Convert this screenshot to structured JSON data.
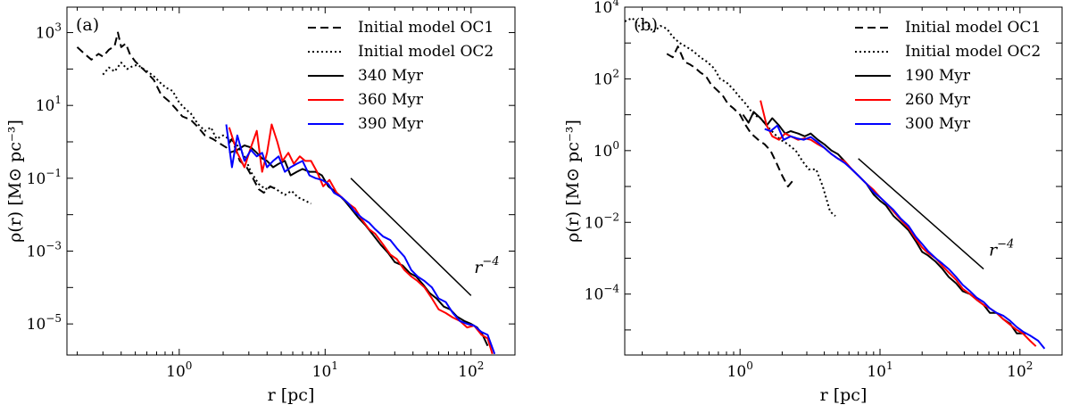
{
  "chart_data": [
    {
      "type": "line",
      "panel_label": "(a)",
      "xlabel": "r [pc]",
      "ylabel": "ρ(r) [M⊙ pc⁻³]",
      "xscale": "log",
      "yscale": "log",
      "xlim": [
        0.17,
        200
      ],
      "ylim": [
        1.4e-06,
        5000
      ],
      "x_ticks": [
        {
          "value": 1,
          "exp": "0"
        },
        {
          "value": 10,
          "exp": "1"
        },
        {
          "value": 100,
          "exp": "2"
        }
      ],
      "y_ticks": [
        {
          "value": 1e-05,
          "exp": "−5"
        },
        {
          "value": 0.001,
          "exp": "−3"
        },
        {
          "value": 0.1,
          "exp": "−1"
        },
        {
          "value": 10,
          "exp": "1"
        },
        {
          "value": 1000,
          "exp": "3"
        }
      ],
      "tick_base": "10",
      "legend_position": "top-right",
      "series": [
        {
          "name": "Initial model OC1",
          "color": "#000000",
          "dash": "dashed",
          "x": [
            0.2,
            0.22,
            0.25,
            0.28,
            0.3,
            0.33,
            0.36,
            0.38,
            0.4,
            0.43,
            0.46,
            0.5,
            0.55,
            0.6,
            0.67,
            0.75,
            0.85,
            0.95,
            1.05,
            1.2,
            1.35,
            1.5,
            1.7,
            1.9,
            2.1,
            2.3,
            2.6,
            2.9,
            3.2,
            3.5,
            3.8,
            4.2,
            4.6
          ],
          "y": [
            400,
            280,
            180,
            260,
            220,
            340,
            420,
            1000,
            400,
            500,
            250,
            160,
            110,
            80,
            50,
            20,
            13,
            8,
            5,
            4,
            2.5,
            1.5,
            1.2,
            0.9,
            0.7,
            1.2,
            0.3,
            0.2,
            0.1,
            0.05,
            0.04,
            0.06,
            0.05
          ]
        },
        {
          "name": "Initial model OC2",
          "color": "#000000",
          "dash": "dotted",
          "x": [
            0.3,
            0.33,
            0.36,
            0.4,
            0.44,
            0.48,
            0.52,
            0.57,
            0.62,
            0.68,
            0.75,
            0.82,
            0.9,
            1.0,
            1.1,
            1.2,
            1.35,
            1.5,
            1.65,
            1.8,
            2.0,
            2.2,
            2.5,
            2.8,
            3.1,
            3.5,
            3.9,
            4.3,
            4.8,
            5.3,
            5.9,
            6.5,
            7.2,
            8.0
          ],
          "y": [
            70,
            110,
            85,
            150,
            100,
            120,
            130,
            100,
            80,
            60,
            40,
            30,
            25,
            12,
            8,
            6,
            3,
            2,
            2.5,
            1.2,
            1.5,
            1.2,
            0.8,
            0.4,
            0.15,
            0.07,
            0.05,
            0.06,
            0.045,
            0.035,
            0.045,
            0.03,
            0.025,
            0.02
          ]
        },
        {
          "name": "340 Myr",
          "color": "#000000",
          "dash": "solid",
          "x": [
            2.2,
            2.5,
            2.8,
            3.1,
            3.4,
            3.7,
            4.0,
            4.4,
            4.8,
            5.3,
            5.8,
            6.4,
            7.0,
            7.8,
            8.6,
            9.5,
            10.5,
            12,
            13.5,
            15,
            17,
            19,
            21,
            24,
            27,
            30,
            34,
            38,
            42,
            47,
            52,
            58,
            65,
            72,
            80,
            90,
            100,
            110,
            120,
            130
          ],
          "y": [
            0.5,
            0.6,
            0.8,
            0.7,
            0.5,
            0.35,
            0.3,
            0.2,
            0.25,
            0.3,
            0.12,
            0.15,
            0.18,
            0.15,
            0.15,
            0.12,
            0.06,
            0.04,
            0.025,
            0.015,
            0.008,
            0.005,
            0.003,
            0.0015,
            0.0009,
            0.0005,
            0.0004,
            0.00025,
            0.0002,
            0.00012,
            7e-05,
            5e-05,
            3e-05,
            2.5e-05,
            1.6e-05,
            1.2e-05,
            1e-05,
            8e-06,
            5e-06,
            2.5e-06
          ]
        },
        {
          "name": "360 Myr",
          "color": "#ff0000",
          "dash": "solid",
          "x": [
            2.2,
            2.5,
            2.8,
            3.1,
            3.4,
            3.7,
            4.0,
            4.3,
            4.7,
            5.1,
            5.6,
            6.1,
            6.7,
            7.3,
            8.0,
            8.8,
            9.7,
            10.7,
            12,
            13,
            14.5,
            16,
            18,
            20,
            22,
            25,
            28,
            31,
            35,
            39,
            43,
            48,
            54,
            60,
            67,
            75,
            84,
            94,
            105,
            118,
            130,
            140
          ],
          "y": [
            2.5,
            0.5,
            0.2,
            0.7,
            2,
            0.15,
            0.5,
            3,
            1,
            0.3,
            0.5,
            0.25,
            0.4,
            0.3,
            0.3,
            0.15,
            0.06,
            0.09,
            0.04,
            0.03,
            0.02,
            0.015,
            0.007,
            0.004,
            0.003,
            0.0015,
            0.0008,
            0.0006,
            0.0003,
            0.0002,
            0.00015,
            0.0001,
            5e-05,
            2.5e-05,
            2e-05,
            1.5e-05,
            1.2e-05,
            8e-06,
            9e-06,
            5e-06,
            4e-06,
            1.5e-06
          ]
        },
        {
          "name": "390 Myr",
          "color": "#0000ff",
          "dash": "solid",
          "x": [
            2.1,
            2.3,
            2.5,
            2.8,
            3.1,
            3.4,
            3.7,
            4.0,
            4.4,
            4.8,
            5.3,
            5.8,
            6.4,
            7.0,
            7.8,
            8.6,
            9.5,
            10.5,
            11.5,
            13,
            14.5,
            16,
            18,
            20,
            22,
            25,
            28,
            31,
            35,
            39,
            43,
            48,
            54,
            60,
            67,
            75,
            84,
            94,
            105,
            118,
            130,
            145
          ],
          "y": [
            3,
            0.2,
            1.5,
            0.3,
            0.6,
            0.4,
            0.5,
            0.2,
            0.3,
            0.4,
            0.15,
            0.2,
            0.25,
            0.3,
            0.12,
            0.1,
            0.09,
            0.07,
            0.04,
            0.03,
            0.02,
            0.012,
            0.008,
            0.006,
            0.004,
            0.0025,
            0.002,
            0.0012,
            0.0007,
            0.0003,
            0.0002,
            0.00015,
            0.0001,
            5e-05,
            4e-05,
            2e-05,
            1.2e-05,
            1e-05,
            9e-06,
            6e-06,
            5e-06,
            1.5e-06
          ]
        }
      ],
      "reference_line": {
        "label": "r",
        "label_sup": "−4",
        "x": [
          15,
          100
        ],
        "y": [
          0.1,
          6e-05
        ],
        "label_at": [
          105,
          0.00025
        ]
      }
    },
    {
      "type": "line",
      "panel_label": "(b)",
      "xlabel": "r [pc]",
      "ylabel": "ρ(r) [M⊙ pc⁻³]",
      "xscale": "log",
      "yscale": "log",
      "xlim": [
        0.15,
        200
      ],
      "ylim": [
        2e-06,
        10000
      ],
      "x_ticks": [
        {
          "value": 1,
          "exp": "0"
        },
        {
          "value": 10,
          "exp": "1"
        },
        {
          "value": 100,
          "exp": "2"
        }
      ],
      "y_ticks": [
        {
          "value": 0.0001,
          "exp": "−4"
        },
        {
          "value": 0.01,
          "exp": "−2"
        },
        {
          "value": 1,
          "exp": "0"
        },
        {
          "value": 100,
          "exp": "2"
        },
        {
          "value": 10000,
          "exp": "4"
        }
      ],
      "tick_base": "10",
      "legend_position": "top-right",
      "series": [
        {
          "name": "Initial model OC1",
          "color": "#000000",
          "dash": "dashed",
          "x": [
            0.3,
            0.33,
            0.36,
            0.4,
            0.44,
            0.48,
            0.52,
            0.57,
            0.62,
            0.68,
            0.75,
            0.82,
            0.9,
            1.0,
            1.1,
            1.2,
            1.35,
            1.5,
            1.65,
            1.8,
            2.0,
            2.2,
            2.4
          ],
          "y": [
            500,
            400,
            800,
            300,
            250,
            200,
            150,
            120,
            70,
            50,
            35,
            20,
            15,
            10,
            5,
            3,
            2,
            1.5,
            1,
            0.5,
            0.2,
            0.1,
            0.15
          ]
        },
        {
          "name": "Initial model OC2",
          "color": "#000000",
          "dash": "dotted",
          "x": [
            0.15,
            0.17,
            0.19,
            0.21,
            0.24,
            0.27,
            0.3,
            0.33,
            0.37,
            0.41,
            0.46,
            0.52,
            0.58,
            0.65,
            0.72,
            0.8,
            0.9,
            1.0,
            1.1,
            1.25,
            1.4,
            1.55,
            1.75,
            1.95,
            2.2,
            2.5,
            2.8,
            3.1,
            3.5,
            3.9,
            4.4,
            4.8
          ],
          "y": [
            4000,
            5000,
            3000,
            4000,
            2000,
            3000,
            2500,
            1500,
            1000,
            800,
            600,
            400,
            300,
            200,
            100,
            80,
            50,
            30,
            20,
            10,
            8,
            5,
            3,
            2,
            1.5,
            1,
            0.5,
            0.3,
            0.3,
            0.1,
            0.02,
            0.015
          ]
        },
        {
          "name": "190 Myr",
          "color": "#000000",
          "dash": "solid",
          "x": [
            1.05,
            1.15,
            1.25,
            1.4,
            1.55,
            1.7,
            1.9,
            2.1,
            2.3,
            2.6,
            2.9,
            3.2,
            3.6,
            4.0,
            4.5,
            5.0,
            5.6,
            6.3,
            7.0,
            8.0,
            9.0,
            10,
            11,
            12.5,
            14,
            16,
            18,
            20,
            22,
            25,
            28,
            31,
            35,
            39,
            44,
            49,
            55,
            61,
            68,
            76,
            85,
            95,
            110
          ],
          "y": [
            10,
            6,
            12,
            8,
            5,
            8,
            5,
            3,
            3.5,
            3,
            2.5,
            3,
            2,
            1.5,
            1,
            0.8,
            0.5,
            0.3,
            0.2,
            0.12,
            0.06,
            0.04,
            0.03,
            0.015,
            0.01,
            0.006,
            0.003,
            0.0015,
            0.0012,
            0.0008,
            0.0005,
            0.0003,
            0.0002,
            0.00012,
            0.0001,
            7e-05,
            5e-05,
            3e-05,
            3e-05,
            2e-05,
            1.5e-05,
            8e-06,
            8e-06
          ]
        },
        {
          "name": "260 Myr",
          "color": "#ff0000",
          "dash": "solid",
          "x": [
            1.4,
            1.55,
            1.7,
            1.9,
            2.1,
            2.3,
            2.6,
            2.9,
            3.2,
            3.6,
            4.0,
            4.5,
            5.0,
            5.6,
            6.3,
            7.0,
            8.0,
            9.0,
            10,
            11,
            12.5,
            14,
            16,
            18,
            20,
            22,
            25,
            28,
            31,
            35,
            39,
            44,
            49,
            55,
            61,
            68,
            76,
            85,
            95,
            105,
            118,
            130
          ],
          "y": [
            25,
            5,
            2.5,
            2,
            3,
            2.5,
            2,
            2.2,
            2,
            1.5,
            1.2,
            0.8,
            0.6,
            0.5,
            0.3,
            0.2,
            0.12,
            0.08,
            0.05,
            0.035,
            0.02,
            0.012,
            0.007,
            0.0035,
            0.002,
            0.0014,
            0.001,
            0.0006,
            0.0004,
            0.00025,
            0.00014,
            0.0001,
            7e-05,
            5e-05,
            4e-05,
            3e-05,
            2e-05,
            1.4e-05,
            1e-05,
            8e-06,
            5e-06,
            3.5e-06
          ]
        },
        {
          "name": "300 Myr",
          "color": "#0000ff",
          "dash": "solid",
          "x": [
            1.5,
            1.65,
            1.85,
            2.05,
            2.3,
            2.55,
            2.85,
            3.2,
            3.6,
            4.0,
            4.5,
            5.0,
            5.6,
            6.3,
            7.0,
            8.0,
            9.0,
            10,
            11,
            12.5,
            14,
            16,
            18,
            20,
            22,
            25,
            28,
            31,
            35,
            39,
            44,
            49,
            55,
            61,
            68,
            76,
            85,
            95,
            105,
            118,
            135,
            150
          ],
          "y": [
            4,
            3.5,
            5,
            2,
            2.5,
            2.2,
            2,
            2.4,
            1.7,
            1.2,
            0.8,
            0.6,
            0.45,
            0.3,
            0.2,
            0.12,
            0.07,
            0.05,
            0.035,
            0.022,
            0.013,
            0.008,
            0.004,
            0.0025,
            0.0016,
            0.001,
            0.0007,
            0.0005,
            0.0003,
            0.00018,
            0.00012,
            8e-05,
            6e-05,
            4e-05,
            3e-05,
            2.5e-05,
            1.8e-05,
            1.2e-05,
            9e-06,
            7e-06,
            5e-06,
            3e-06
          ]
        }
      ],
      "reference_line": {
        "label": "r",
        "label_sup": "−4",
        "x": [
          7,
          55
        ],
        "y": [
          0.6,
          0.0005
        ],
        "label_at": [
          60,
          0.0012
        ]
      }
    }
  ]
}
